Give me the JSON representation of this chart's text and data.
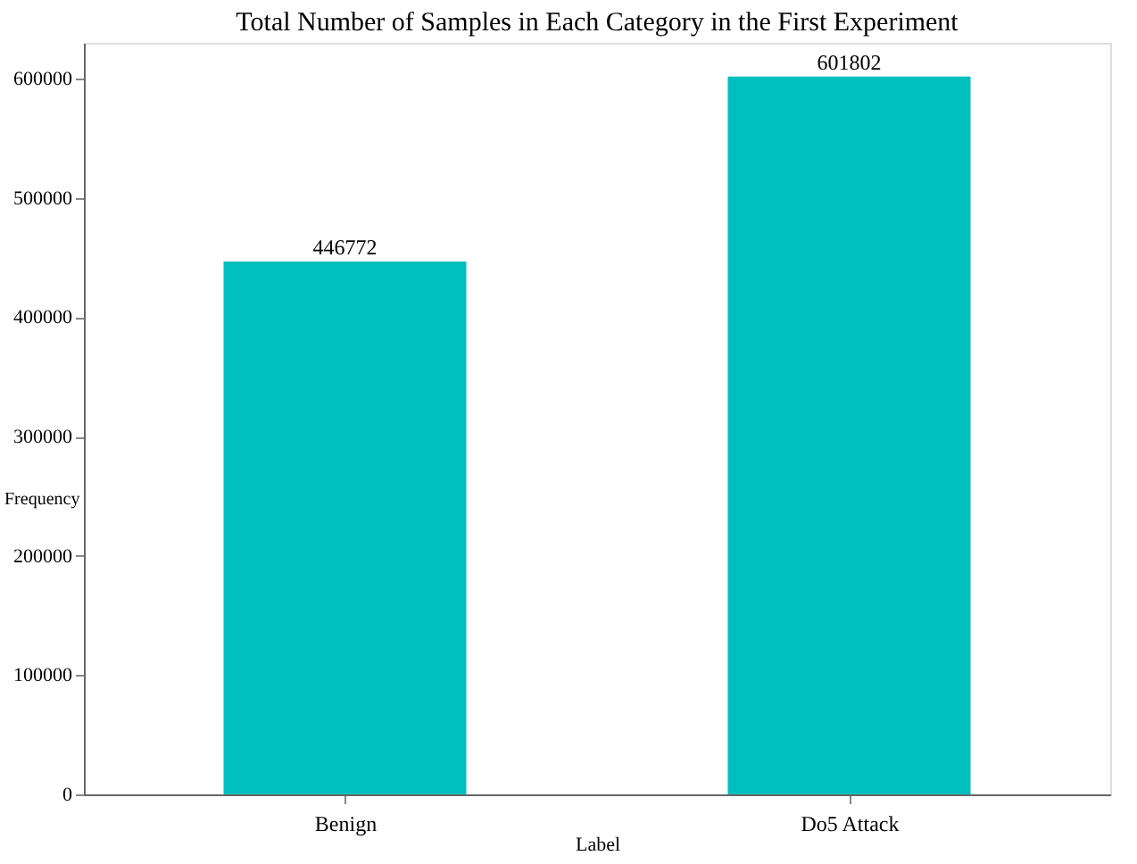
{
  "chart_data": {
    "type": "bar",
    "title": "Total Number of Samples in Each Category in the First Experiment",
    "xlabel": "Label",
    "ylabel": "Frequency",
    "categories": [
      "Benign",
      "Do5 Attack"
    ],
    "values": [
      446772,
      601802
    ],
    "color": "#00bfbf",
    "ylim": [
      0,
      630000
    ],
    "yticks": [
      0,
      100000,
      200000,
      300000,
      400000,
      500000,
      600000
    ],
    "data_labels": true,
    "grid": false
  }
}
